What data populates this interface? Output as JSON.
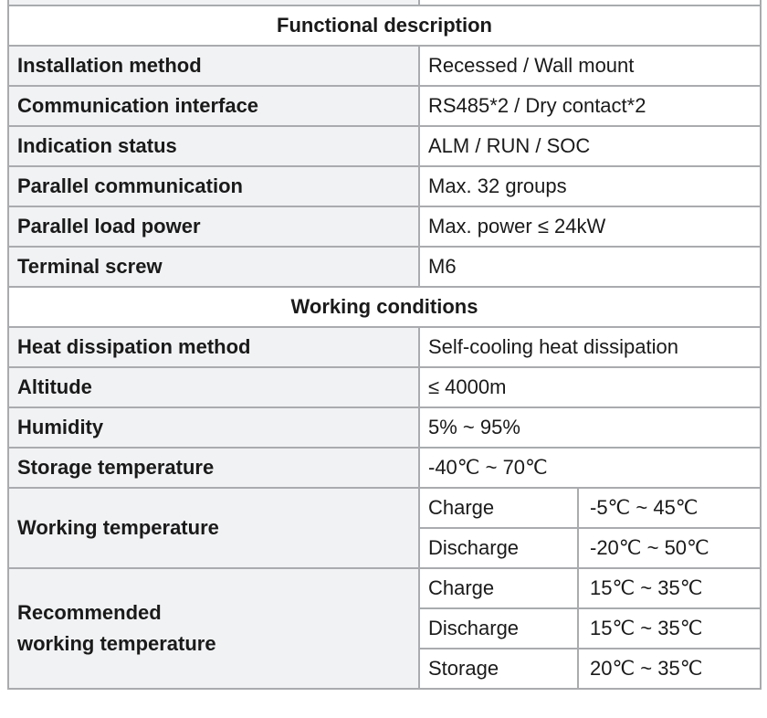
{
  "sections": [
    {
      "title": "Functional description",
      "rows": [
        {
          "label": "Installation method",
          "value": "Recessed / Wall mount"
        },
        {
          "label": "Communication interface",
          "value": "RS485*2 / Dry contact*2"
        },
        {
          "label": "Indication status",
          "value": "ALM / RUN / SOC"
        },
        {
          "label": "Parallel communication",
          "value": "Max. 32 groups"
        },
        {
          "label": "Parallel load power",
          "value": "Max. power ≤ 24kW"
        },
        {
          "label": "Terminal screw",
          "value": "M6"
        }
      ]
    },
    {
      "title": "Working conditions",
      "rows": [
        {
          "label": "Heat dissipation method",
          "value": "Self-cooling heat dissipation"
        },
        {
          "label": "Altitude",
          "value": "≤ 4000m"
        },
        {
          "label": "Humidity",
          "value": "5% ~ 95%"
        },
        {
          "label": "Storage temperature",
          "value": "-40℃ ~ 70℃"
        }
      ],
      "working_temperature": {
        "label": "Working temperature",
        "rows": [
          {
            "mode": "Charge",
            "range": "-5℃ ~ 45℃"
          },
          {
            "mode": "Discharge",
            "range": "-20℃ ~ 50℃"
          }
        ]
      },
      "recommended_temperature": {
        "label_line1": "Recommended",
        "label_line2": "working temperature",
        "rows": [
          {
            "mode": "Charge",
            "range": "15℃ ~ 35℃"
          },
          {
            "mode": "Discharge",
            "range": "15℃ ~ 35℃"
          },
          {
            "mode": "Storage",
            "range": "20℃ ~ 35℃"
          }
        ]
      }
    }
  ]
}
